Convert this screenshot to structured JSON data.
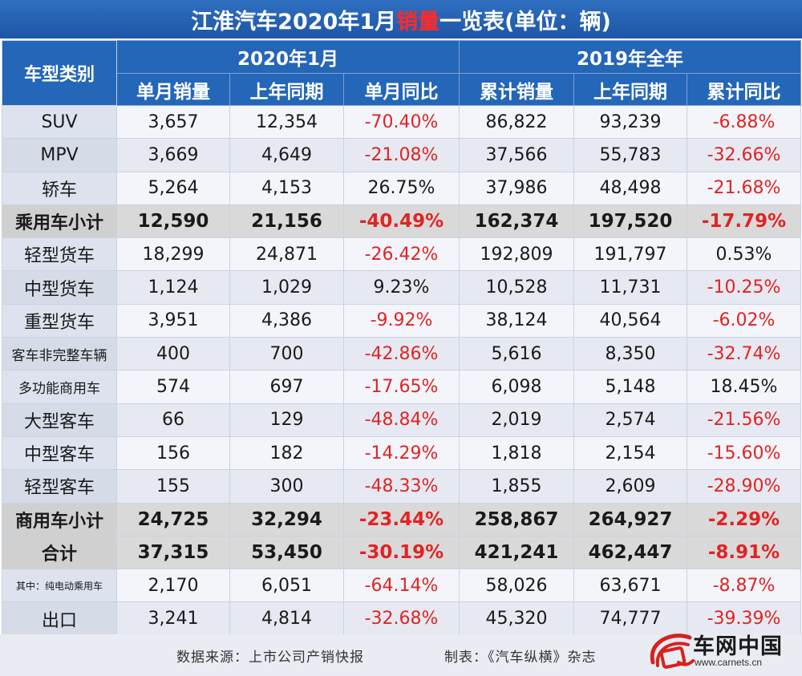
{
  "title": {
    "prefix": "江淮汽车2020年1月",
    "highlight": "销量",
    "suffix": "一览表(单位：辆)"
  },
  "header": {
    "category": "车型类别",
    "group1": "2020年1月",
    "group2": "2019年全年",
    "columns": [
      "单月销量",
      "上年同期",
      "单月同比",
      "累计销量",
      "上年同期",
      "累计同比"
    ]
  },
  "rows": [
    {
      "cat": "SUV",
      "cells": [
        "3,657",
        "12,354",
        "-70.40%",
        "86,822",
        "93,239",
        "-6.88%"
      ]
    },
    {
      "cat": "MPV",
      "cells": [
        "3,669",
        "4,649",
        "-21.08%",
        "37,566",
        "55,783",
        "-32.66%"
      ]
    },
    {
      "cat": "轿车",
      "cells": [
        "5,264",
        "4,153",
        "26.75%",
        "37,986",
        "48,498",
        "-21.68%"
      ]
    },
    {
      "cat": "乘用车小计",
      "cells": [
        "12,590",
        "21,156",
        "-40.49%",
        "162,374",
        "197,520",
        "-17.79%"
      ]
    },
    {
      "cat": "轻型货车",
      "cells": [
        "18,299",
        "24,871",
        "-26.42%",
        "192,809",
        "191,797",
        "0.53%"
      ]
    },
    {
      "cat": "中型货车",
      "cells": [
        "1,124",
        "1,029",
        "9.23%",
        "10,528",
        "11,731",
        "-10.25%"
      ]
    },
    {
      "cat": "重型货车",
      "cells": [
        "3,951",
        "4,386",
        "-9.92%",
        "38,124",
        "40,564",
        "-6.02%"
      ]
    },
    {
      "cat": "客车非完整车辆",
      "cells": [
        "400",
        "700",
        "-42.86%",
        "5,616",
        "8,350",
        "-32.74%"
      ]
    },
    {
      "cat": "多功能商用车",
      "cells": [
        "574",
        "697",
        "-17.65%",
        "6,098",
        "5,148",
        "18.45%"
      ]
    },
    {
      "cat": "大型客车",
      "cells": [
        "66",
        "129",
        "-48.84%",
        "2,019",
        "2,574",
        "-21.56%"
      ]
    },
    {
      "cat": "中型客车",
      "cells": [
        "156",
        "182",
        "-14.29%",
        "1,818",
        "2,154",
        "-15.60%"
      ]
    },
    {
      "cat": "轻型客车",
      "cells": [
        "155",
        "300",
        "-48.33%",
        "1,855",
        "2,609",
        "-28.90%"
      ]
    },
    {
      "cat": "商用车小计",
      "cells": [
        "24,725",
        "32,294",
        "-23.44%",
        "258,867",
        "264,927",
        "-2.29%"
      ]
    },
    {
      "cat": "合计",
      "cells": [
        "37,315",
        "53,450",
        "-30.19%",
        "421,241",
        "462,447",
        "-8.91%"
      ]
    },
    {
      "cat": "其中：纯电动乘用车",
      "cells": [
        "2,170",
        "6,051",
        "-64.14%",
        "58,026",
        "63,671",
        "-8.87%"
      ]
    },
    {
      "cat": "出口",
      "cells": [
        "3,241",
        "4,814",
        "-32.68%",
        "45,320",
        "74,777",
        "-39.39%"
      ]
    }
  ],
  "footer": {
    "source": "数据来源：上市公司产销快报",
    "maker": "制表：《汽车纵横》杂志"
  },
  "brand": {
    "name": "车网中国",
    "url": "www.carnets.cn"
  },
  "colors": {
    "header_blue": "#2466b8",
    "negative_red": "#e02424",
    "subtotal_gray": "#d9d9d9"
  }
}
